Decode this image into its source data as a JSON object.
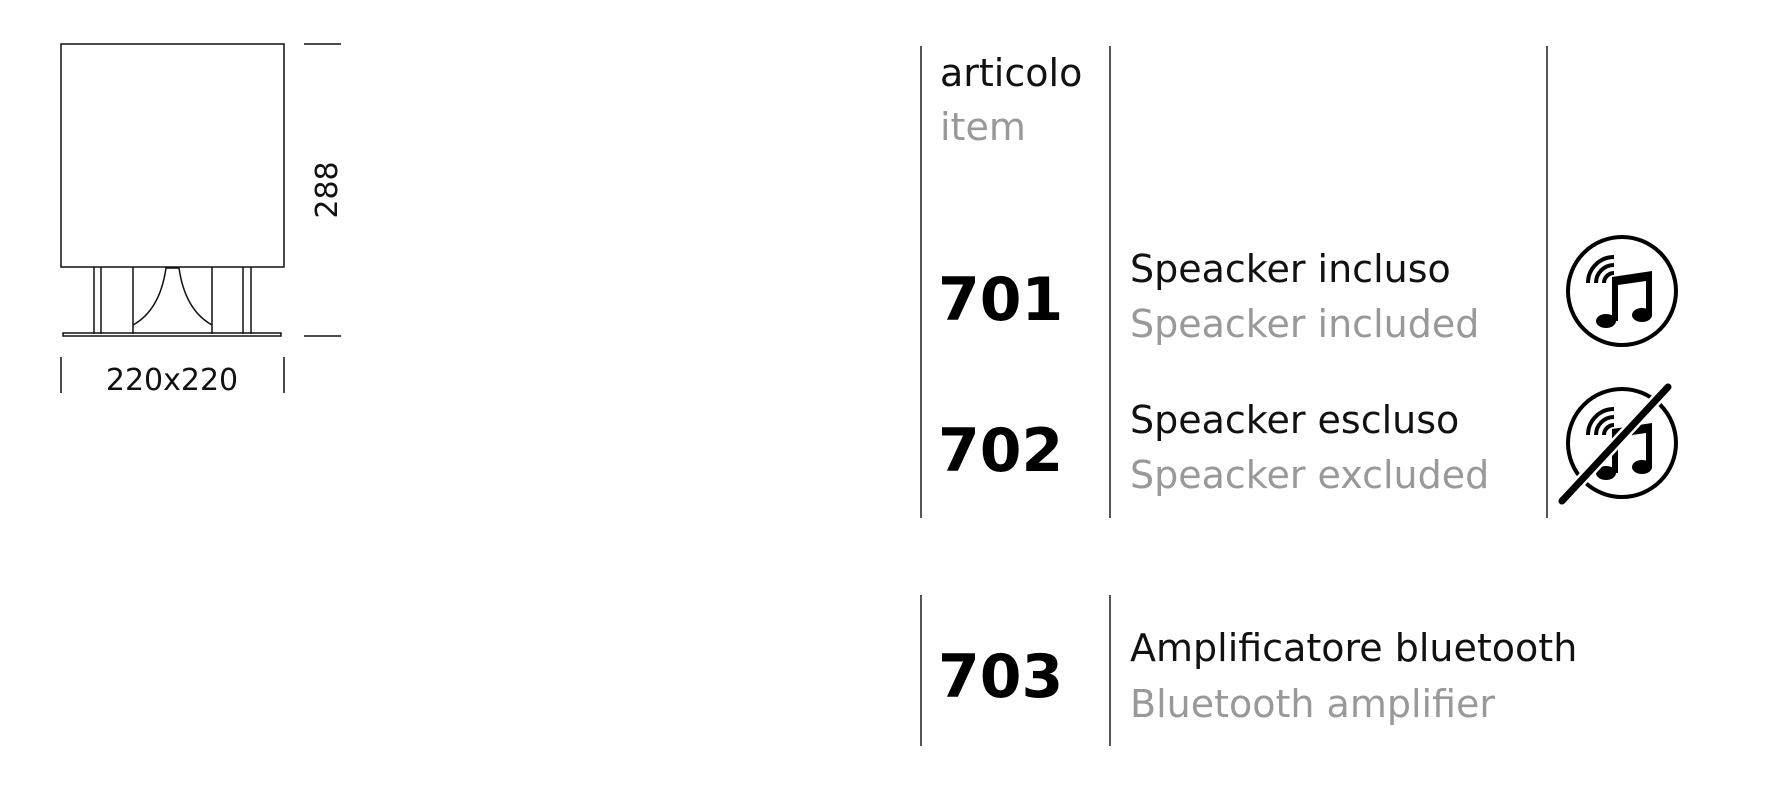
{
  "drawing": {
    "height_label": "288",
    "base_label": "220x220"
  },
  "table": {
    "header": {
      "it": "articolo",
      "en": "item"
    },
    "rows": [
      {
        "code": "701",
        "it": "Speacker incluso",
        "en": "Speacker included",
        "icon": "music-speaker-icon"
      },
      {
        "code": "702",
        "it": "Speacker escluso",
        "en": "Speacker excluded",
        "icon": "music-speaker-crossed-icon"
      },
      {
        "code": "703",
        "it": "Amplificatore bluetooth",
        "en": "Bluetooth amplifier"
      }
    ]
  },
  "colors": {
    "primary_text": "#111111",
    "secondary_text": "#999999"
  }
}
